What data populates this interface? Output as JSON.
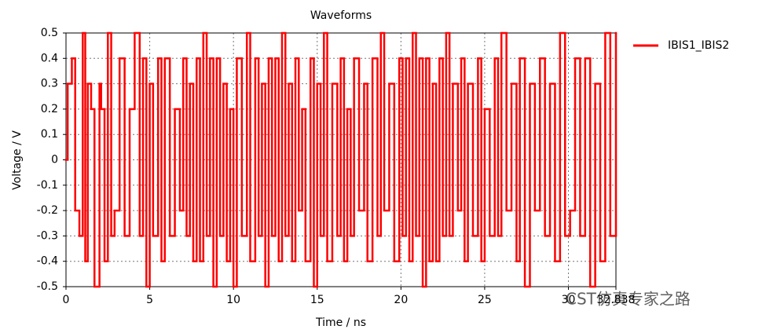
{
  "chart_data": {
    "type": "line",
    "title": "Waveforms",
    "xlabel": "Time / ns",
    "ylabel": "Voltage / V",
    "watermark": "CST仿真专家之路",
    "xlim": [
      0,
      32.838
    ],
    "xticks": [
      0,
      5,
      10,
      15,
      20,
      25,
      30,
      32.838
    ],
    "ylim": [
      -0.5,
      0.5
    ],
    "yticks": [
      -0.5,
      -0.4,
      -0.3,
      -0.2,
      -0.1,
      0,
      0.1,
      0.2,
      0.3,
      0.4,
      0.5
    ],
    "grid": true,
    "step": true,
    "legend": "right",
    "x": [
      0,
      0.1,
      0.35,
      0.55,
      0.8,
      1.0,
      1.15,
      1.3,
      1.5,
      1.7,
      2.0,
      2.1,
      2.3,
      2.5,
      2.7,
      2.9,
      3.2,
      3.5,
      3.8,
      4.1,
      4.4,
      4.6,
      4.8,
      5.0,
      5.2,
      5.5,
      5.7,
      5.9,
      6.2,
      6.5,
      6.8,
      7.0,
      7.2,
      7.4,
      7.6,
      7.8,
      8.0,
      8.2,
      8.4,
      8.6,
      8.8,
      9.0,
      9.2,
      9.4,
      9.6,
      9.8,
      10.0,
      10.2,
      10.5,
      10.8,
      11.0,
      11.3,
      11.5,
      11.7,
      11.9,
      12.1,
      12.3,
      12.5,
      12.7,
      12.9,
      13.1,
      13.3,
      13.5,
      13.7,
      13.9,
      14.1,
      14.3,
      14.6,
      14.8,
      15.0,
      15.2,
      15.4,
      15.6,
      15.9,
      16.2,
      16.4,
      16.6,
      16.8,
      17.0,
      17.2,
      17.5,
      17.8,
      18.0,
      18.3,
      18.6,
      18.8,
      19.0,
      19.3,
      19.6,
      19.9,
      20.1,
      20.3,
      20.5,
      20.7,
      20.9,
      21.1,
      21.3,
      21.5,
      21.7,
      21.9,
      22.1,
      22.3,
      22.5,
      22.7,
      22.9,
      23.1,
      23.4,
      23.6,
      23.8,
      24.0,
      24.3,
      24.6,
      24.8,
      25.0,
      25.3,
      25.6,
      25.8,
      26.0,
      26.3,
      26.6,
      26.9,
      27.1,
      27.4,
      27.7,
      28.0,
      28.3,
      28.6,
      28.9,
      29.2,
      29.5,
      29.8,
      30.1,
      30.4,
      30.7,
      31.0,
      31.3,
      31.6,
      31.9,
      32.2,
      32.5,
      32.838
    ],
    "series": [
      {
        "name": "IBIS1_IBIS2",
        "color": "#ff0000",
        "values": [
          0,
          0.3,
          0.4,
          -0.2,
          -0.3,
          0.5,
          -0.4,
          0.3,
          0.2,
          -0.5,
          0.3,
          0.2,
          -0.4,
          0.5,
          -0.3,
          -0.2,
          0.4,
          -0.3,
          0.2,
          0.5,
          -0.3,
          0.4,
          -0.5,
          0.3,
          -0.3,
          0.4,
          -0.4,
          0.4,
          -0.3,
          0.2,
          -0.2,
          0.4,
          -0.3,
          0.3,
          -0.4,
          0.4,
          -0.4,
          0.5,
          -0.3,
          0.4,
          -0.5,
          0.4,
          -0.3,
          0.3,
          -0.4,
          0.2,
          -0.5,
          0.4,
          -0.3,
          0.5,
          -0.4,
          0.4,
          -0.3,
          0.3,
          -0.5,
          0.4,
          -0.3,
          0.4,
          -0.4,
          0.5,
          -0.3,
          0.3,
          -0.4,
          0.4,
          -0.2,
          0.2,
          -0.4,
          0.4,
          -0.5,
          0.3,
          -0.3,
          0.5,
          -0.4,
          0.3,
          -0.3,
          0.4,
          -0.4,
          0.2,
          -0.3,
          0.4,
          -0.2,
          0.3,
          -0.4,
          0.4,
          -0.3,
          0.5,
          -0.2,
          0.3,
          -0.4,
          0.4,
          -0.3,
          0.4,
          -0.4,
          0.5,
          -0.3,
          0.4,
          -0.5,
          0.4,
          -0.4,
          0.3,
          -0.4,
          0.4,
          -0.3,
          0.5,
          -0.3,
          0.3,
          -0.2,
          0.4,
          -0.4,
          0.3,
          -0.3,
          0.4,
          -0.4,
          0.2,
          -0.3,
          0.4,
          -0.3,
          0.5,
          -0.2,
          0.3,
          -0.4,
          0.4,
          -0.5,
          0.3,
          -0.2,
          0.4,
          -0.3,
          0.3,
          -0.4,
          0.5,
          -0.3,
          -0.2,
          0.4,
          -0.3,
          0.4,
          -0.5,
          0.3,
          -0.4,
          0.5,
          -0.3,
          0.5
        ]
      }
    ]
  }
}
